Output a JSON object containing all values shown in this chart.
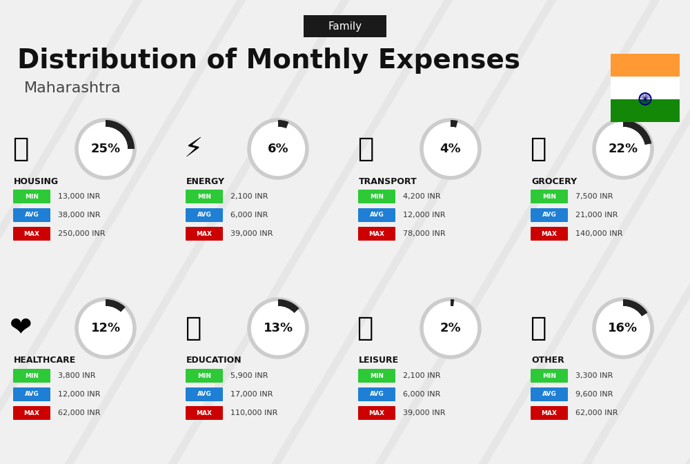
{
  "title": "Distribution of Monthly Expenses",
  "subtitle": "Maharashtra",
  "tag": "Family",
  "background_color": "#f0f0f0",
  "categories": [
    {
      "name": "HOUSING",
      "percent": 25,
      "min_val": "13,000 INR",
      "avg_val": "38,000 INR",
      "max_val": "250,000 INR",
      "icon_emoji": "🏢",
      "col": 0,
      "row": 0
    },
    {
      "name": "ENERGY",
      "percent": 6,
      "min_val": "2,100 INR",
      "avg_val": "6,000 INR",
      "max_val": "39,000 INR",
      "icon_emoji": "⚡",
      "col": 1,
      "row": 0
    },
    {
      "name": "TRANSPORT",
      "percent": 4,
      "min_val": "4,200 INR",
      "avg_val": "12,000 INR",
      "max_val": "78,000 INR",
      "icon_emoji": "🚌",
      "col": 2,
      "row": 0
    },
    {
      "name": "GROCERY",
      "percent": 22,
      "min_val": "7,500 INR",
      "avg_val": "21,000 INR",
      "max_val": "140,000 INR",
      "icon_emoji": "🛒",
      "col": 3,
      "row": 0
    },
    {
      "name": "HEALTHCARE",
      "percent": 12,
      "min_val": "3,800 INR",
      "avg_val": "12,000 INR",
      "max_val": "62,000 INR",
      "icon_emoji": "❤️",
      "col": 0,
      "row": 1
    },
    {
      "name": "EDUCATION",
      "percent": 13,
      "min_val": "5,900 INR",
      "avg_val": "17,000 INR",
      "max_val": "110,000 INR",
      "icon_emoji": "🎓",
      "col": 1,
      "row": 1
    },
    {
      "name": "LEISURE",
      "percent": 2,
      "min_val": "2,100 INR",
      "avg_val": "6,000 INR",
      "max_val": "39,000 INR",
      "icon_emoji": "🛍️",
      "col": 2,
      "row": 1
    },
    {
      "name": "OTHER",
      "percent": 16,
      "min_val": "3,300 INR",
      "avg_val": "9,600 INR",
      "max_val": "62,000 INR",
      "icon_emoji": "👜",
      "col": 3,
      "row": 1
    }
  ],
  "min_color": "#2dc937",
  "avg_color": "#1e7fd4",
  "max_color": "#cc0000",
  "label_text_color": "#ffffff",
  "value_text_color": "#333333",
  "arc_filled_color": "#222222",
  "arc_empty_color": "#cccccc",
  "category_name_color": "#111111",
  "india_flag_saffron": "#FF9933",
  "india_flag_green": "#138808",
  "india_flag_white": "#FFFFFF"
}
